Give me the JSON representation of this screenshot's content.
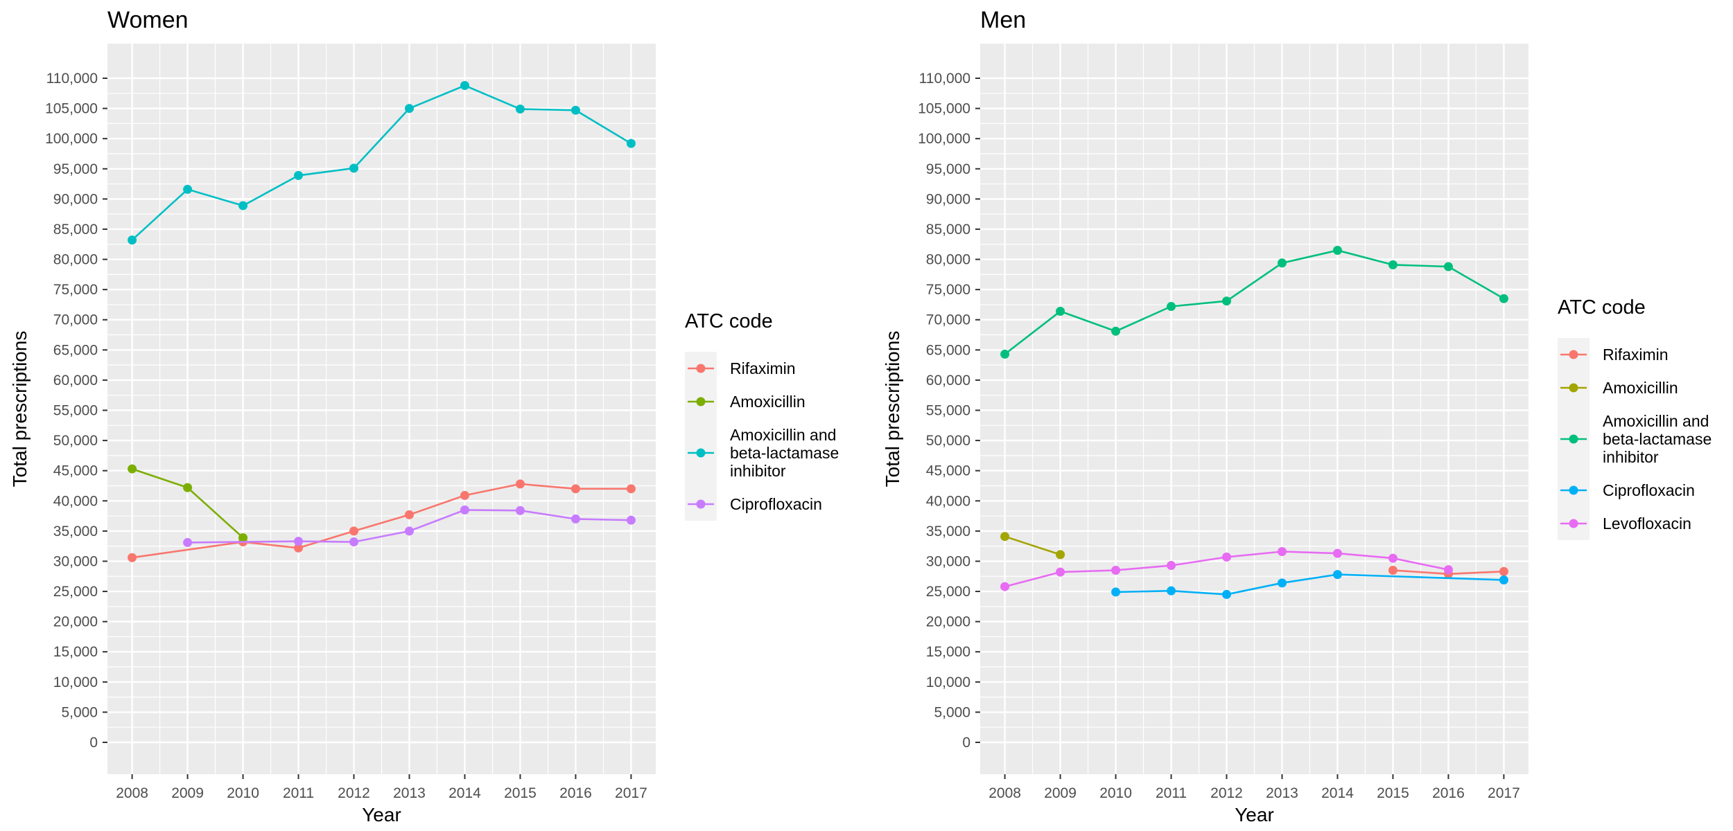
{
  "chart_data": [
    {
      "type": "line",
      "title": "Women",
      "xlabel": "Year",
      "ylabel": "Total prescriptions",
      "x": [
        2008,
        2009,
        2010,
        2011,
        2012,
        2013,
        2014,
        2015,
        2016,
        2017
      ],
      "ylim": [
        -5000,
        115000
      ],
      "yticks": [
        0,
        5000,
        10000,
        15000,
        20000,
        25000,
        30000,
        35000,
        40000,
        45000,
        50000,
        55000,
        60000,
        65000,
        70000,
        75000,
        80000,
        85000,
        90000,
        95000,
        100000,
        105000,
        110000
      ],
      "ytick_labels": [
        "0",
        "5,000",
        "10,000",
        "15,000",
        "20,000",
        "25,000",
        "30,000",
        "35,000",
        "40,000",
        "45,000",
        "50,000",
        "55,000",
        "60,000",
        "65,000",
        "70,000",
        "75,000",
        "80,000",
        "85,000",
        "90,000",
        "95,000",
        "100,000",
        "105,000",
        "110,000"
      ],
      "grid": true,
      "legend": {
        "title": "ATC code",
        "position": "right",
        "entries": [
          {
            "label": "Rifaximin",
            "color": "#F8766D"
          },
          {
            "label": "Amoxicillin",
            "color": "#7CAE00"
          },
          {
            "label": "Amoxicillin and beta-lactamase inhibitor",
            "color": "#00BFC4"
          },
          {
            "label": "Ciprofloxacin",
            "color": "#C77CFF"
          }
        ]
      },
      "series": [
        {
          "name": "Rifaximin",
          "color": "#F8766D",
          "points": [
            [
              2008,
              30600
            ],
            [
              2010,
              33200
            ],
            [
              2011,
              32200
            ],
            [
              2012,
              35000
            ],
            [
              2013,
              37700
            ],
            [
              2014,
              40900
            ],
            [
              2015,
              42800
            ],
            [
              2016,
              42000
            ],
            [
              2017,
              42000
            ]
          ]
        },
        {
          "name": "Amoxicillin",
          "color": "#7CAE00",
          "points": [
            [
              2008,
              45300
            ],
            [
              2009,
              42200
            ],
            [
              2010,
              33900
            ]
          ]
        },
        {
          "name": "Amoxicillin and beta-lactamase inhibitor",
          "color": "#00BFC4",
          "points": [
            [
              2008,
              83200
            ],
            [
              2009,
              91600
            ],
            [
              2010,
              88900
            ],
            [
              2011,
              93900
            ],
            [
              2012,
              95100
            ],
            [
              2013,
              105000
            ],
            [
              2014,
              108800
            ],
            [
              2015,
              104900
            ],
            [
              2016,
              104700
            ],
            [
              2017,
              99200
            ]
          ]
        },
        {
          "name": "Ciprofloxacin",
          "color": "#C77CFF",
          "points": [
            [
              2009,
              33100
            ],
            [
              2011,
              33300
            ],
            [
              2012,
              33200
            ],
            [
              2013,
              35000
            ],
            [
              2014,
              38500
            ],
            [
              2015,
              38400
            ],
            [
              2016,
              37000
            ],
            [
              2017,
              36800
            ]
          ]
        }
      ]
    },
    {
      "type": "line",
      "title": "Men",
      "xlabel": "Year",
      "ylabel": "Total prescriptions",
      "x": [
        2008,
        2009,
        2010,
        2011,
        2012,
        2013,
        2014,
        2015,
        2016,
        2017
      ],
      "ylim": [
        -5000,
        115000
      ],
      "yticks": [
        0,
        5000,
        10000,
        15000,
        20000,
        25000,
        30000,
        35000,
        40000,
        45000,
        50000,
        55000,
        60000,
        65000,
        70000,
        75000,
        80000,
        85000,
        90000,
        95000,
        100000,
        105000,
        110000
      ],
      "ytick_labels": [
        "0",
        "5,000",
        "10,000",
        "15,000",
        "20,000",
        "25,000",
        "30,000",
        "35,000",
        "40,000",
        "45,000",
        "50,000",
        "55,000",
        "60,000",
        "65,000",
        "70,000",
        "75,000",
        "80,000",
        "85,000",
        "90,000",
        "95,000",
        "100,000",
        "105,000",
        "110,000"
      ],
      "grid": true,
      "legend": {
        "title": "ATC code",
        "position": "right",
        "entries": [
          {
            "label": "Rifaximin",
            "color": "#F8766D"
          },
          {
            "label": "Amoxicillin",
            "color": "#A3A500"
          },
          {
            "label": "Amoxicillin and beta-lactamase inhibitor",
            "color": "#00BF7D"
          },
          {
            "label": "Ciprofloxacin",
            "color": "#00B0F6"
          },
          {
            "label": "Levofloxacin",
            "color": "#E76BF3"
          }
        ]
      },
      "series": [
        {
          "name": "Rifaximin",
          "color": "#F8766D",
          "points": [
            [
              2015,
              28500
            ],
            [
              2016,
              27900
            ],
            [
              2017,
              28300
            ]
          ]
        },
        {
          "name": "Amoxicillin",
          "color": "#A3A500",
          "points": [
            [
              2008,
              34100
            ],
            [
              2009,
              31100
            ]
          ]
        },
        {
          "name": "Amoxicillin and beta-lactamase inhibitor",
          "color": "#00BF7D",
          "points": [
            [
              2008,
              64300
            ],
            [
              2009,
              71400
            ],
            [
              2010,
              68100
            ],
            [
              2011,
              72200
            ],
            [
              2012,
              73100
            ],
            [
              2013,
              79400
            ],
            [
              2014,
              81500
            ],
            [
              2015,
              79100
            ],
            [
              2016,
              78800
            ],
            [
              2017,
              73500
            ]
          ]
        },
        {
          "name": "Ciprofloxacin",
          "color": "#00B0F6",
          "points": [
            [
              2010,
              24900
            ],
            [
              2011,
              25100
            ],
            [
              2012,
              24500
            ],
            [
              2013,
              26400
            ],
            [
              2014,
              27800
            ],
            [
              2017,
              26900
            ]
          ]
        },
        {
          "name": "Levofloxacin",
          "color": "#E76BF3",
          "points": [
            [
              2008,
              25800
            ],
            [
              2009,
              28200
            ],
            [
              2010,
              28500
            ],
            [
              2011,
              29300
            ],
            [
              2012,
              30700
            ],
            [
              2013,
              31600
            ],
            [
              2014,
              31300
            ],
            [
              2015,
              30500
            ],
            [
              2016,
              28600
            ]
          ]
        }
      ]
    }
  ]
}
